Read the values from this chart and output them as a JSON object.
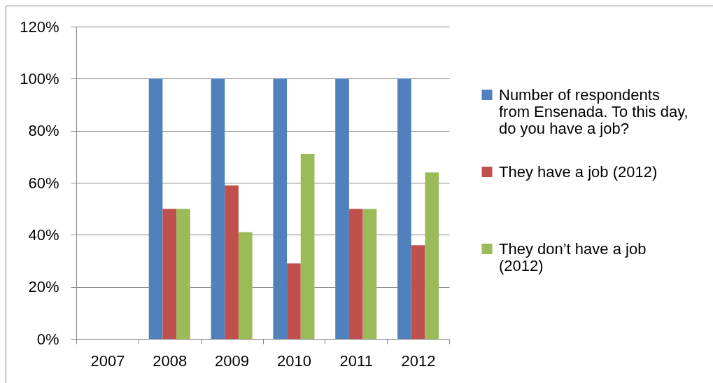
{
  "chart_data": {
    "type": "bar",
    "categories": [
      "2007",
      "2008",
      "2009",
      "2010",
      "2011",
      "2012"
    ],
    "series": [
      {
        "name": "Number of respondents from Ensenada. To this day, do you have a job?",
        "color": "#4f81bd",
        "values": [
          null,
          100,
          100,
          100,
          100,
          100
        ]
      },
      {
        "name": "They have a job (2012)",
        "color": "#c0504d",
        "values": [
          null,
          50,
          59,
          29,
          50,
          36
        ]
      },
      {
        "name": "They don’t have a job (2012)",
        "color": "#9bbb59",
        "values": [
          null,
          50,
          41,
          71,
          50,
          64
        ]
      }
    ],
    "ylim": [
      0,
      120
    ],
    "yticks": [
      {
        "value": 0,
        "label": "0%"
      },
      {
        "value": 20,
        "label": "20%"
      },
      {
        "value": 40,
        "label": "40%"
      },
      {
        "value": 60,
        "label": "60%"
      },
      {
        "value": 80,
        "label": "80%"
      },
      {
        "value": 100,
        "label": "100%"
      },
      {
        "value": 120,
        "label": "120%"
      }
    ],
    "grid": "y",
    "legend": "right"
  }
}
